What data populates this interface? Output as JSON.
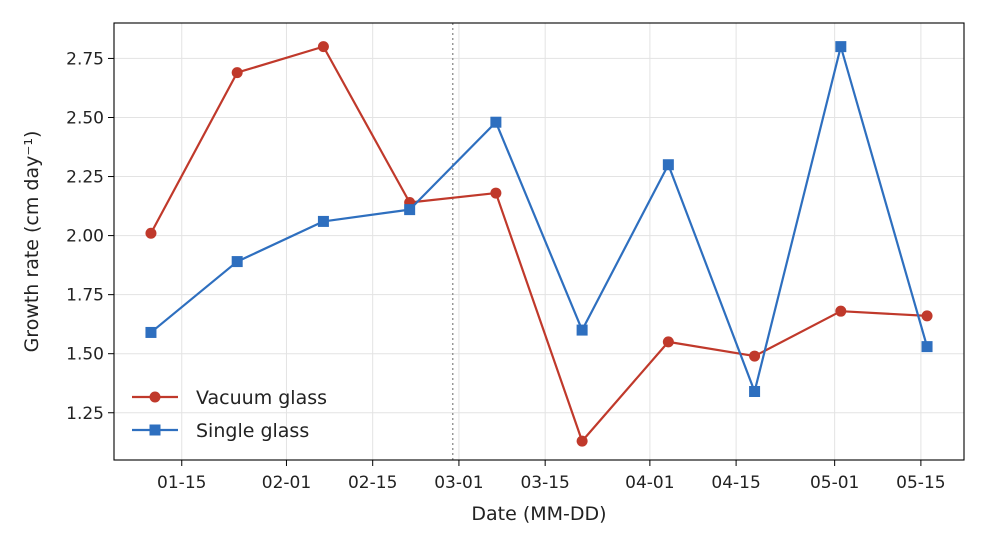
{
  "chart_data": {
    "type": "line",
    "title": "",
    "xlabel": "Date (MM-DD)",
    "ylabel": "Growth rate (cm day⁻¹)",
    "x_type": "date",
    "xlim": [
      "2025-01-04",
      "2025-05-22"
    ],
    "ylim": [
      1.05,
      2.9
    ],
    "x_ticks": [
      {
        "date": "2025-01-15",
        "label": "01-15"
      },
      {
        "date": "2025-02-01",
        "label": "02-01"
      },
      {
        "date": "2025-02-15",
        "label": "02-15"
      },
      {
        "date": "2025-03-01",
        "label": "03-01"
      },
      {
        "date": "2025-03-15",
        "label": "03-15"
      },
      {
        "date": "2025-04-01",
        "label": "04-01"
      },
      {
        "date": "2025-04-15",
        "label": "04-15"
      },
      {
        "date": "2025-05-01",
        "label": "05-01"
      },
      {
        "date": "2025-05-15",
        "label": "05-15"
      }
    ],
    "y_ticks": [
      1.25,
      1.5,
      1.75,
      2.0,
      2.25,
      2.5,
      2.75
    ],
    "grid": true,
    "vline": "2025-02-28",
    "legend_position": "lower-left",
    "x": [
      "2025-01-10",
      "2025-01-24",
      "2025-02-07",
      "2025-02-21",
      "2025-03-07",
      "2025-03-21",
      "2025-04-04",
      "2025-04-18",
      "2025-05-02",
      "2025-05-16"
    ],
    "series": [
      {
        "name": "Vacuum glass",
        "color": "#c0392b",
        "marker": "circle",
        "values": [
          2.01,
          2.69,
          2.8,
          2.14,
          2.18,
          1.13,
          1.55,
          1.49,
          1.68,
          1.66
        ]
      },
      {
        "name": "Single glass",
        "color": "#2e6fbf",
        "marker": "square",
        "values": [
          1.59,
          1.89,
          2.06,
          2.11,
          2.48,
          1.6,
          2.3,
          1.34,
          2.8,
          1.53
        ]
      }
    ]
  }
}
